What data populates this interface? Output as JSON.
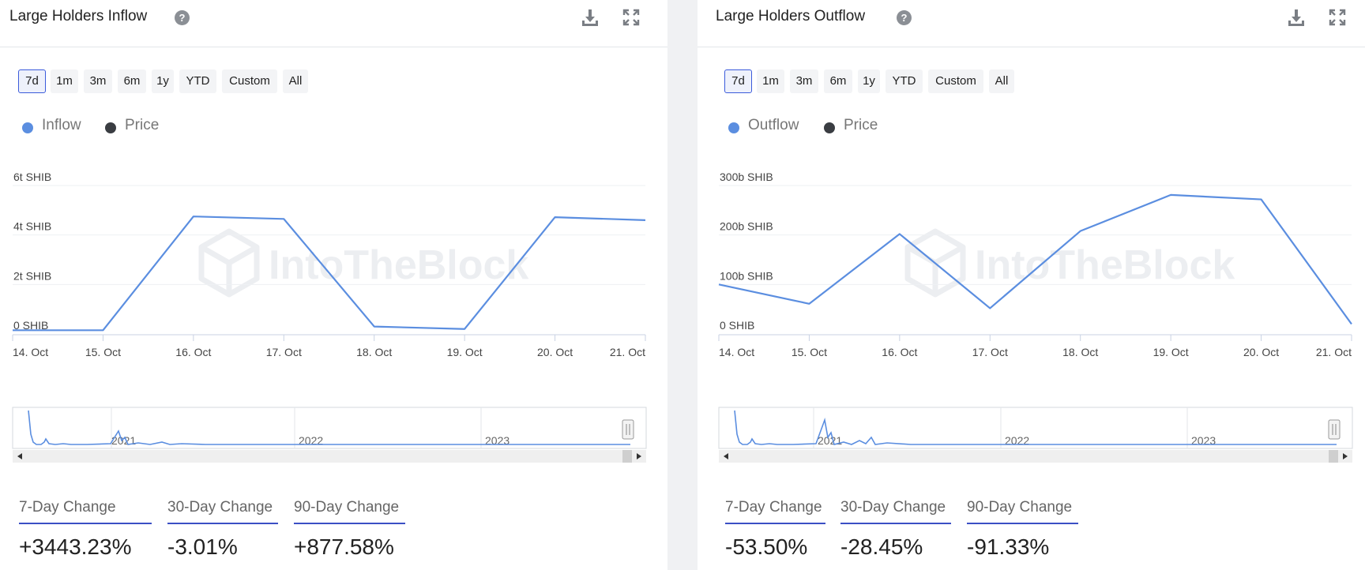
{
  "panels": [
    {
      "title": "Large Holders Inflow",
      "ranges": [
        "7d",
        "1m",
        "3m",
        "6m",
        "1y",
        "YTD",
        "Custom",
        "All"
      ],
      "active_range": "7d",
      "legend": [
        {
          "label": "Inflow",
          "color": "#5b8ee0"
        },
        {
          "label": "Price",
          "color": "#3a3d42"
        }
      ],
      "stats": [
        {
          "label": "7-Day Change",
          "value": "+3443.23%"
        },
        {
          "label": "30-Day Change",
          "value": "-3.01%"
        },
        {
          "label": "90-Day Change",
          "value": "+877.58%"
        }
      ],
      "navigator_years": [
        "2021",
        "2022",
        "2023"
      ],
      "chart_data": {
        "type": "line",
        "x": [
          "14. Oct",
          "15. Oct",
          "16. Oct",
          "17. Oct",
          "18. Oct",
          "19. Oct",
          "20. Oct",
          "21. Oct"
        ],
        "series": [
          {
            "name": "Inflow",
            "values": [
              0.15,
              0.15,
              4.75,
              4.65,
              0.3,
              0.2,
              4.72,
              4.6
            ],
            "color": "#5b8ee0"
          }
        ],
        "ylim": [
          0,
          6
        ],
        "yticks": [
          {
            "value": 0,
            "label": "0 SHIB"
          },
          {
            "value": 2,
            "label": "2t SHIB"
          },
          {
            "value": 4,
            "label": "4t SHIB"
          },
          {
            "value": 6,
            "label": "6t SHIB"
          }
        ],
        "grid": true
      }
    },
    {
      "title": "Large Holders Outflow",
      "ranges": [
        "7d",
        "1m",
        "3m",
        "6m",
        "1y",
        "YTD",
        "Custom",
        "All"
      ],
      "active_range": "7d",
      "legend": [
        {
          "label": "Outflow",
          "color": "#5b8ee0"
        },
        {
          "label": "Price",
          "color": "#3a3d42"
        }
      ],
      "stats": [
        {
          "label": "7-Day Change",
          "value": "-53.50%"
        },
        {
          "label": "30-Day Change",
          "value": "-28.45%"
        },
        {
          "label": "90-Day Change",
          "value": "-91.33%"
        }
      ],
      "navigator_years": [
        "2021",
        "2022",
        "2023"
      ],
      "chart_data": {
        "type": "line",
        "x": [
          "14. Oct",
          "15. Oct",
          "16. Oct",
          "17. Oct",
          "18. Oct",
          "19. Oct",
          "20. Oct",
          "21. Oct"
        ],
        "series": [
          {
            "name": "Outflow",
            "values": [
              100,
              61,
              202,
              52,
              208,
              281,
              272,
              20
            ],
            "color": "#5b8ee0"
          }
        ],
        "ylim": [
          0,
          300
        ],
        "yticks": [
          {
            "value": 0,
            "label": "0 SHIB"
          },
          {
            "value": 100,
            "label": "100b SHIB"
          },
          {
            "value": 200,
            "label": "200b SHIB"
          },
          {
            "value": 300,
            "label": "300b SHIB"
          }
        ],
        "grid": true
      }
    }
  ],
  "watermark": "IntoTheBlock"
}
